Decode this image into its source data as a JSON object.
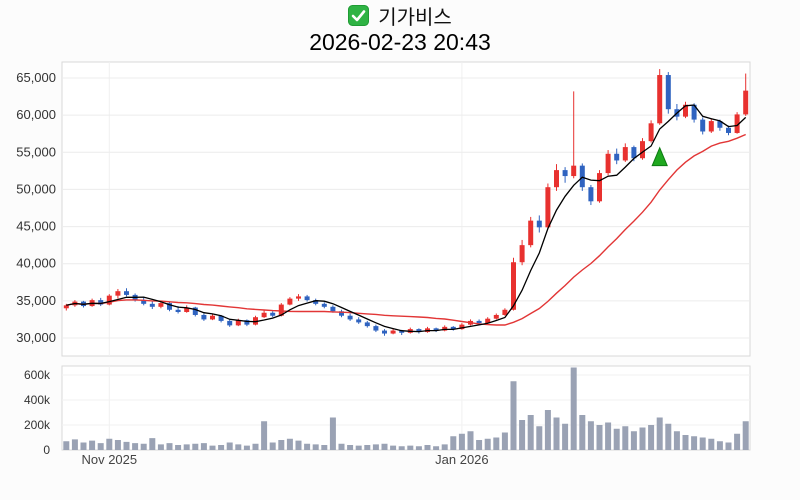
{
  "header": {
    "symbol": "기가비스",
    "timestamp": "2026-02-23 20:43",
    "checkbox_state": "checked",
    "checkbox_color": "#2fb344"
  },
  "chart_data": {
    "type": "candlestick_with_volume",
    "title": "기가비스",
    "subtitle": "2026-02-23 20:43",
    "ylim": [
      28000,
      67000
    ],
    "volume_in_thousands": true,
    "y_axis": {
      "ticks": [
        30000,
        35000,
        40000,
        45000,
        50000,
        55000,
        60000,
        65000
      ],
      "labels": [
        "30,000",
        "35,000",
        "40,000",
        "45,000",
        "50,000",
        "55,000",
        "60,000",
        "65,000"
      ]
    },
    "volume_axis": {
      "ticks": [
        0,
        200,
        400,
        600
      ],
      "labels": [
        "0",
        "200k",
        "400k",
        "600k"
      ]
    },
    "x_axis": {
      "ticks": [
        {
          "index": 5,
          "label": "Nov 2025"
        },
        {
          "index": 46,
          "label": "Jan 2026"
        }
      ]
    },
    "overlays": {
      "ma_fast_period": 5,
      "ma_slow_period": 20,
      "marker": {
        "index": 69,
        "price": 54400,
        "shape": "triangle-up",
        "meaning": "signal-marker"
      }
    },
    "colors": {
      "up": "#e8312f",
      "down": "#2f63c0",
      "volume": "#9aa2b4",
      "ma_fast": "#000000",
      "ma_slow": "#e23636",
      "marker": "#1fa81f",
      "grid": "#ececec",
      "panel_border": "#d8d8d8"
    },
    "candles": [
      [
        34000,
        34600,
        33700,
        34400,
        70
      ],
      [
        34400,
        35100,
        34200,
        34900,
        85
      ],
      [
        34900,
        35000,
        34100,
        34300,
        60
      ],
      [
        34300,
        35300,
        34200,
        35100,
        75
      ],
      [
        35100,
        35400,
        34300,
        34500,
        55
      ],
      [
        34500,
        35900,
        34400,
        35700,
        90
      ],
      [
        35700,
        36600,
        35300,
        36300,
        80
      ],
      [
        36300,
        36700,
        35600,
        35800,
        65
      ],
      [
        35800,
        36000,
        34900,
        35100,
        55
      ],
      [
        35100,
        35500,
        34400,
        34600,
        50
      ],
      [
        34600,
        35000,
        33900,
        34200,
        95
      ],
      [
        34200,
        34900,
        34000,
        34700,
        45
      ],
      [
        34700,
        34800,
        33600,
        33800,
        55
      ],
      [
        33800,
        34300,
        33300,
        33500,
        40
      ],
      [
        33500,
        34400,
        33400,
        34100,
        45
      ],
      [
        34100,
        34200,
        32900,
        33100,
        50
      ],
      [
        33100,
        33300,
        32300,
        32500,
        55
      ],
      [
        32500,
        33200,
        32400,
        33000,
        35
      ],
      [
        33000,
        33100,
        32100,
        32300,
        40
      ],
      [
        32300,
        32500,
        31500,
        31700,
        60
      ],
      [
        31700,
        32600,
        31600,
        32400,
        45
      ],
      [
        32400,
        32500,
        31600,
        31800,
        35
      ],
      [
        31800,
        33000,
        31700,
        32800,
        50
      ],
      [
        32800,
        33700,
        32700,
        33400,
        230
      ],
      [
        33400,
        33600,
        32800,
        33000,
        60
      ],
      [
        33000,
        34700,
        32900,
        34500,
        80
      ],
      [
        34500,
        35500,
        34400,
        35300,
        90
      ],
      [
        35300,
        35900,
        35000,
        35600,
        75
      ],
      [
        35600,
        35800,
        34900,
        35100,
        50
      ],
      [
        35100,
        35300,
        34400,
        34600,
        45
      ],
      [
        34600,
        34800,
        34000,
        34200,
        40
      ],
      [
        34200,
        34400,
        33400,
        33600,
        260
      ],
      [
        33600,
        33800,
        32800,
        33000,
        50
      ],
      [
        33000,
        33300,
        32300,
        32500,
        40
      ],
      [
        32500,
        32800,
        31900,
        32100,
        35
      ],
      [
        32100,
        32300,
        31400,
        31600,
        40
      ],
      [
        31600,
        31800,
        30800,
        31000,
        45
      ],
      [
        31000,
        31200,
        30300,
        30600,
        50
      ],
      [
        30600,
        31200,
        30500,
        31000,
        35
      ],
      [
        31000,
        31100,
        30400,
        30700,
        30
      ],
      [
        30700,
        31400,
        30600,
        31200,
        35
      ],
      [
        31200,
        31300,
        30600,
        30800,
        30
      ],
      [
        30800,
        31500,
        30700,
        31300,
        40
      ],
      [
        31300,
        31400,
        30800,
        31000,
        30
      ],
      [
        31000,
        31700,
        30900,
        31500,
        45
      ],
      [
        31500,
        31600,
        31000,
        31200,
        110
      ],
      [
        31200,
        32000,
        31100,
        31800,
        130
      ],
      [
        31800,
        32500,
        31700,
        32300,
        150
      ],
      [
        32300,
        32500,
        31800,
        32000,
        80
      ],
      [
        32000,
        32800,
        31900,
        32600,
        90
      ],
      [
        32600,
        33300,
        32500,
        33100,
        100
      ],
      [
        33100,
        34000,
        33000,
        33800,
        140
      ],
      [
        33800,
        40800,
        33700,
        40200,
        550
      ],
      [
        40200,
        43200,
        39800,
        42500,
        240
      ],
      [
        42500,
        46300,
        42200,
        45800,
        280
      ],
      [
        45800,
        46500,
        44200,
        44900,
        190
      ],
      [
        44900,
        50800,
        44700,
        50300,
        320
      ],
      [
        50300,
        53400,
        49800,
        52600,
        260
      ],
      [
        52600,
        53000,
        50900,
        51800,
        210
      ],
      [
        51800,
        63200,
        51500,
        53200,
        660
      ],
      [
        53200,
        53500,
        49800,
        50300,
        280
      ],
      [
        50300,
        50600,
        47900,
        48400,
        230
      ],
      [
        48400,
        52600,
        48200,
        52200,
        200
      ],
      [
        52200,
        55300,
        51900,
        54800,
        220
      ],
      [
        54800,
        55500,
        53400,
        53900,
        170
      ],
      [
        53900,
        56200,
        53700,
        55700,
        190
      ],
      [
        55700,
        55900,
        53800,
        54200,
        150
      ],
      [
        54200,
        56900,
        54000,
        56500,
        180
      ],
      [
        56500,
        59300,
        56300,
        58900,
        200
      ],
      [
        58900,
        66200,
        58700,
        65400,
        260
      ],
      [
        65400,
        65800,
        60200,
        60800,
        210
      ],
      [
        60800,
        61500,
        59300,
        59800,
        150
      ],
      [
        59800,
        61800,
        59600,
        61400,
        120
      ],
      [
        61400,
        61600,
        59000,
        59400,
        110
      ],
      [
        59400,
        59700,
        57400,
        57800,
        100
      ],
      [
        57800,
        59500,
        57600,
        59200,
        90
      ],
      [
        59200,
        59400,
        57900,
        58300,
        70
      ],
      [
        58300,
        58600,
        57300,
        57600,
        60
      ],
      [
        57600,
        60400,
        57500,
        60100,
        130
      ],
      [
        60100,
        65600,
        59900,
        63300,
        230
      ]
    ]
  }
}
